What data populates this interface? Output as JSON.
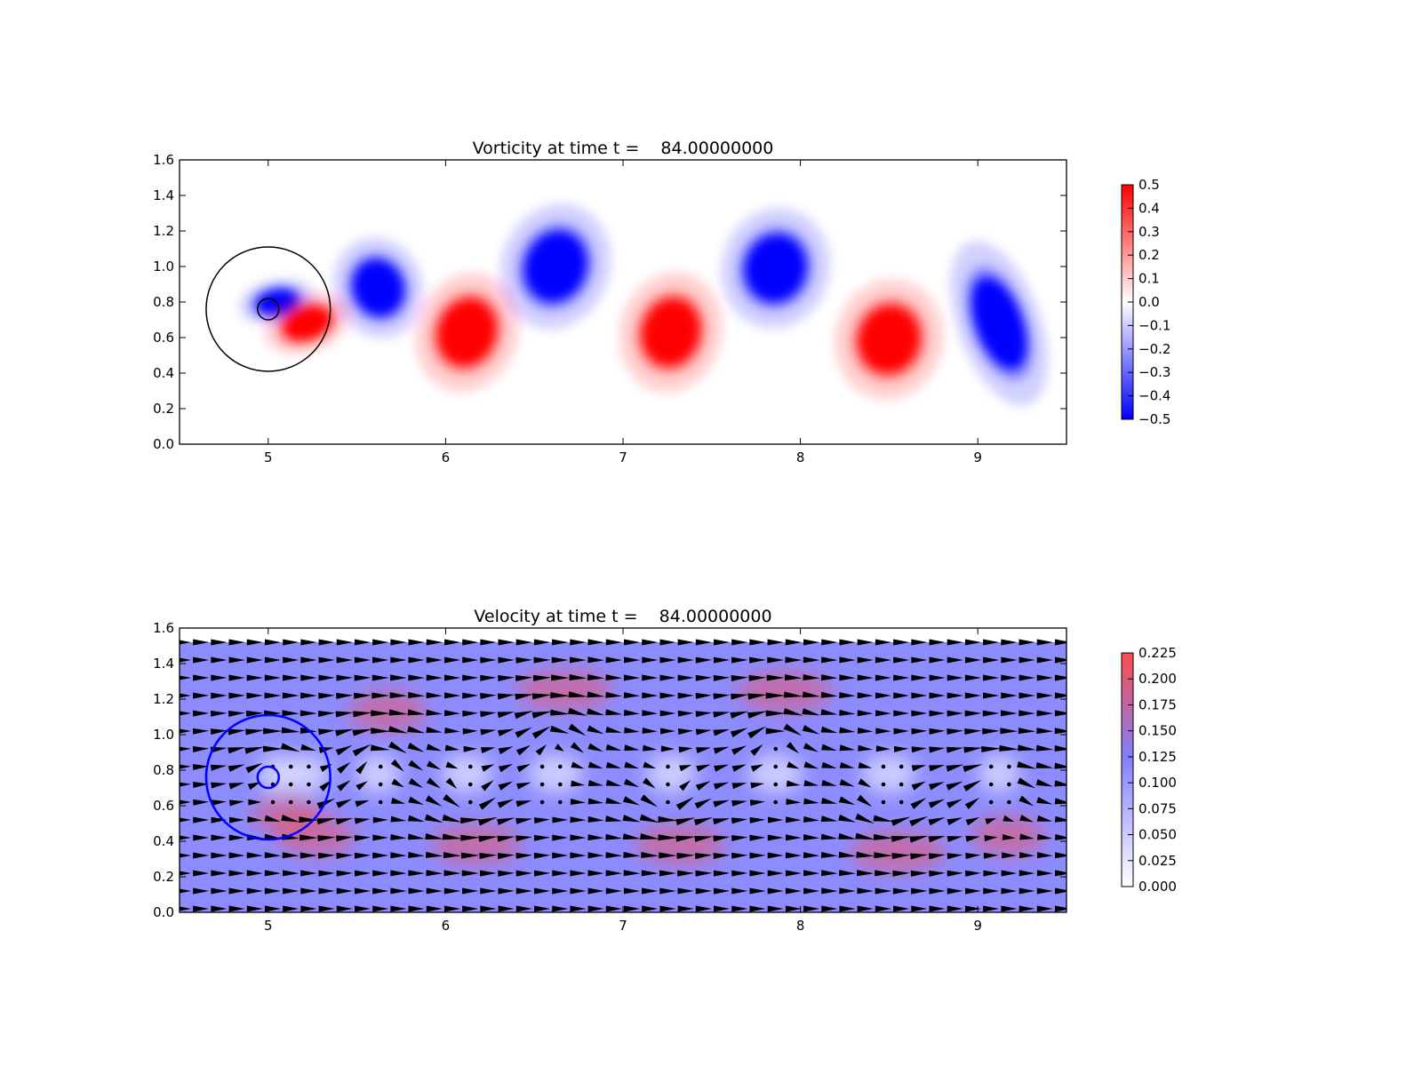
{
  "chart_data": [
    {
      "type": "heatmap",
      "title": "Vorticity at time t =    84.00000000",
      "xlabel": "",
      "ylabel": "",
      "xlim": [
        4.5,
        9.5
      ],
      "ylim": [
        0.0,
        1.6
      ],
      "x_ticks": [
        "5",
        "6",
        "7",
        "8",
        "9"
      ],
      "y_ticks": [
        "0.0",
        "0.2",
        "0.4",
        "0.6",
        "0.8",
        "1.0",
        "1.2",
        "1.4",
        "1.6"
      ],
      "colormap": "bwr",
      "colors": {
        "positive": "#ff0000",
        "zero": "#ffffff",
        "negative": "#0000ff",
        "outline": "#000000"
      },
      "colorbar": {
        "range": [
          -0.5,
          0.5
        ],
        "ticks": [
          "0.5",
          "0.4",
          "0.3",
          "0.2",
          "0.1",
          "0.0",
          "−0.1",
          "−0.2",
          "−0.3",
          "−0.4",
          "−0.5"
        ]
      },
      "vortices": [
        {
          "x": 5.05,
          "y": 0.8,
          "sign": -1,
          "rx": 0.12,
          "ry": 0.07,
          "angle": -10
        },
        {
          "x": 5.22,
          "y": 0.68,
          "sign": 1,
          "rx": 0.14,
          "ry": 0.09,
          "angle": -20
        },
        {
          "x": 5.62,
          "y": 0.88,
          "sign": -1,
          "rx": 0.14,
          "ry": 0.16,
          "angle": -20
        },
        {
          "x": 6.12,
          "y": 0.63,
          "sign": 1,
          "rx": 0.16,
          "ry": 0.19,
          "angle": 20
        },
        {
          "x": 6.62,
          "y": 1.0,
          "sign": -1,
          "rx": 0.17,
          "ry": 0.2,
          "angle": 20
        },
        {
          "x": 7.27,
          "y": 0.63,
          "sign": 1,
          "rx": 0.16,
          "ry": 0.19,
          "angle": 15
        },
        {
          "x": 7.86,
          "y": 0.99,
          "sign": -1,
          "rx": 0.17,
          "ry": 0.19,
          "angle": 15
        },
        {
          "x": 8.5,
          "y": 0.59,
          "sign": 1,
          "rx": 0.17,
          "ry": 0.19,
          "angle": 15
        },
        {
          "x": 9.12,
          "y": 0.68,
          "sign": -1,
          "rx": 0.13,
          "ry": 0.27,
          "angle": -20
        }
      ],
      "circles": [
        {
          "x": 5.0,
          "y": 0.76,
          "r": 0.35
        },
        {
          "x": 5.0,
          "y": 0.76,
          "r": 0.06
        }
      ]
    },
    {
      "type": "heatmap",
      "title": "Velocity at time t =    84.00000000",
      "xlabel": "",
      "ylabel": "",
      "xlim": [
        4.5,
        9.5
      ],
      "ylim": [
        0.0,
        1.6
      ],
      "x_ticks": [
        "5",
        "6",
        "7",
        "8",
        "9"
      ],
      "y_ticks": [
        "0.0",
        "0.2",
        "0.4",
        "0.6",
        "0.8",
        "1.0",
        "1.2",
        "1.4",
        "1.6"
      ],
      "field_top": 1.52,
      "overlay": "quiver",
      "colors": {
        "high": "#ff4c4c",
        "mid": "#8080ff",
        "low": "#ffffff",
        "arrows": "#000000",
        "circles": "#0000ff",
        "masked_dots": "#000000"
      },
      "colorbar": {
        "range": [
          0.0,
          0.225
        ],
        "ticks": [
          "0.225",
          "0.200",
          "0.175",
          "0.150",
          "0.125",
          "0.100",
          "0.075",
          "0.050",
          "0.025",
          "0.000"
        ]
      },
      "circles": [
        {
          "x": 5.0,
          "y": 0.76,
          "r": 0.35
        },
        {
          "x": 5.0,
          "y": 0.76,
          "r": 0.06
        }
      ]
    }
  ]
}
